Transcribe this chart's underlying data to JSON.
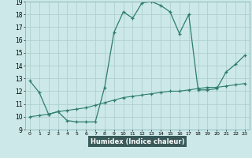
{
  "xlabel": "Humidex (Indice chaleur)",
  "line1_x": [
    0,
    1,
    2,
    3,
    4,
    5,
    6,
    7,
    8,
    9,
    10,
    11,
    12,
    13,
    14,
    15,
    16,
    17,
    18,
    19,
    20,
    21,
    22,
    23
  ],
  "line1_y": [
    12.8,
    11.9,
    10.2,
    10.4,
    9.7,
    9.6,
    9.6,
    9.6,
    12.3,
    16.6,
    18.2,
    17.7,
    18.9,
    19.0,
    18.7,
    18.2,
    16.5,
    18.0,
    12.1,
    12.1,
    12.2,
    13.5,
    14.1,
    14.8
  ],
  "line2_x": [
    0,
    1,
    2,
    3,
    4,
    5,
    6,
    7,
    8,
    9,
    10,
    11,
    12,
    13,
    14,
    15,
    16,
    17,
    18,
    19,
    20,
    21,
    22,
    23
  ],
  "line2_y": [
    10.0,
    10.1,
    10.2,
    10.4,
    10.5,
    10.6,
    10.7,
    10.9,
    11.1,
    11.3,
    11.5,
    11.6,
    11.7,
    11.8,
    11.9,
    12.0,
    12.0,
    12.1,
    12.2,
    12.3,
    12.3,
    12.4,
    12.5,
    12.6
  ],
  "line_color": "#2e7d6e",
  "bg_color": "#cce8e8",
  "plot_bg_color": "#cce8e8",
  "grid_color": "#aacccc",
  "xlabel_bg": "#3a5a5a",
  "xlabel_fg": "#ffffff",
  "xlim": [
    -0.5,
    23.5
  ],
  "ylim": [
    9,
    19
  ],
  "xticks": [
    0,
    1,
    2,
    3,
    4,
    5,
    6,
    7,
    8,
    9,
    10,
    11,
    12,
    13,
    14,
    15,
    16,
    17,
    18,
    19,
    20,
    21,
    22,
    23
  ],
  "yticks": [
    9,
    10,
    11,
    12,
    13,
    14,
    15,
    16,
    17,
    18,
    19
  ]
}
